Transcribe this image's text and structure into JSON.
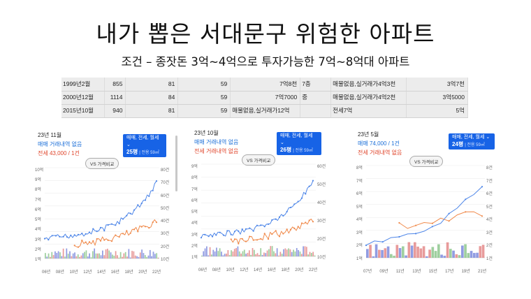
{
  "slide": {
    "title": "내가 뽑은 서대문구 위험한 아파트",
    "subtitle": "조건 – 종잣돈 3억~4억으로 투자가능한 7억~8억대 아파트"
  },
  "table": {
    "rows": [
      [
        "1999년2월",
        "855",
        "81",
        "59",
        "7억8천",
        "7층",
        "매물없음,실거래가4억3천",
        "3억7천"
      ],
      [
        "2000년12월",
        "1114",
        "84",
        "59",
        "7억7000",
        "중",
        "매물없음,실거래가4억2천",
        "3억5000"
      ],
      [
        "2015년10월",
        "940",
        "81",
        "59",
        "매물없음,실거래가12억",
        "",
        "전세7억",
        "5억"
      ]
    ]
  },
  "panels": [
    {
      "date": "23년 11월",
      "sale_text": "매매 거래내역 없음",
      "rent_text": "전세 43,000 / 1건",
      "dropdown_top": "매매, 전세, 월세 ⌄",
      "dropdown_count": "25평",
      "dropdown_area": "| 전용 59㎡",
      "vs_label": "VS 가격비교",
      "y_left": [
        "10억",
        "9억",
        "8억",
        "7억",
        "6억",
        "5억",
        "4억",
        "3억",
        "2억",
        "1억"
      ],
      "y_right": [
        "80건",
        "70건",
        "60건",
        "50건",
        "40건",
        "30건",
        "20건",
        "10건"
      ],
      "x_labels": [
        "06년",
        "08년",
        "10년",
        "12년",
        "14년",
        "16년",
        "18년",
        "20년",
        "22년"
      ]
    },
    {
      "date": "23년 10월",
      "sale_text": "매매 거래내역 없음",
      "rent_text": "전세 거래내역 없음",
      "dropdown_top": "매매, 전세, 월세 ⌄",
      "dropdown_count": "26평",
      "dropdown_area": "| 전용 59㎡",
      "vs_label": "VS 가격비교",
      "y_left": [
        "9억",
        "8억",
        "7억",
        "6억",
        "5억",
        "4억",
        "3억",
        "2억",
        "1억"
      ],
      "y_right": [
        "60건",
        "50건",
        "40건",
        "30건",
        "20건",
        "10건"
      ],
      "x_labels": [
        "06년",
        "08년",
        "10년",
        "12년",
        "14년",
        "16년",
        "18년",
        "20년",
        "22년"
      ]
    },
    {
      "date": "23년 5월",
      "sale_text": "매매 74,000 / 1건",
      "rent_text": "전세 거래내역 없음",
      "dropdown_top": "매매, 전세, 월세 ⌄",
      "dropdown_count": "24평",
      "dropdown_area": "| 전용 59㎡",
      "vs_label": "VS 가격비교",
      "y_left": [
        "8억",
        "7억",
        "6억",
        "5억",
        "4억",
        "3억",
        "2억",
        "1억"
      ],
      "y_right": [
        "8건",
        "7건",
        "6건",
        "5건",
        "4건",
        "3건",
        "2건",
        "1건"
      ],
      "x_labels": [
        "07년",
        "09년",
        "11년",
        "13년",
        "15년",
        "17년",
        "19년",
        "21년"
      ]
    }
  ]
}
